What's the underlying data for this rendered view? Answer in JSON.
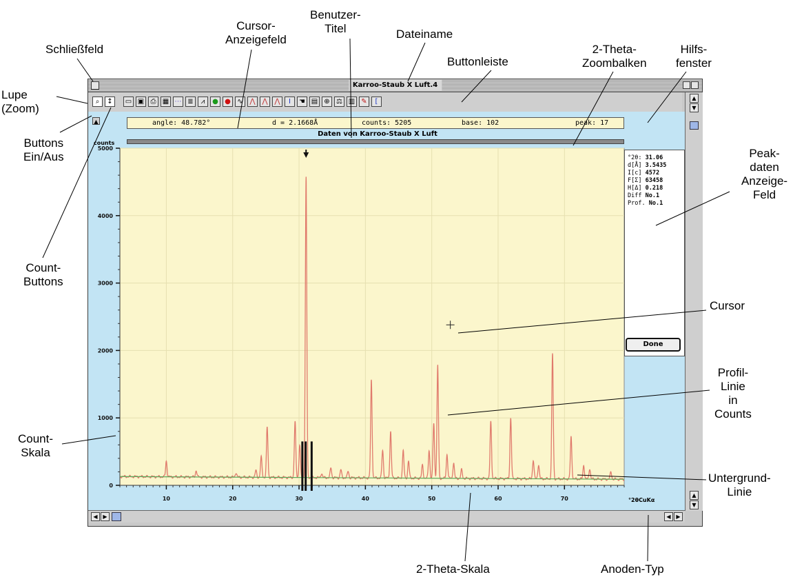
{
  "annotations": {
    "schliessfeld": "Schließfeld",
    "cursor_anzeigefeld": [
      "Cursor-",
      "Anzeigefeld"
    ],
    "benutzer_titel": [
      "Benutzer-",
      "Titel"
    ],
    "dateiname": "Dateiname",
    "buttonleiste": "Buttonleiste",
    "zoombalken": [
      "2-Theta-",
      "Zoombalken"
    ],
    "hilfsfenster": [
      "Hilfs-",
      "fenster"
    ],
    "lupe": [
      "Lupe",
      "(Zoom)"
    ],
    "buttons_ein_aus": [
      "Buttons",
      "Ein/Aus"
    ],
    "count_buttons": [
      "Count-",
      "Buttons"
    ],
    "peakdaten": [
      "Peak-",
      "daten",
      "Anzeige-",
      "Feld"
    ],
    "cursor": "Cursor",
    "profil_linie": [
      "Profil-",
      "Linie",
      "in",
      "Counts"
    ],
    "count_skala": [
      "Count-",
      "Skala"
    ],
    "untergrund_linie": [
      "Untergrund-",
      "Linie"
    ],
    "theta_skala": "2-Theta-Skala",
    "anoden_typ": "Anoden-Typ"
  },
  "window": {
    "title": "Karroo-Staub X Luft.4"
  },
  "toolbar": {
    "icons": [
      "zoom-icon",
      "count-updown-icon",
      "open-icon",
      "save-icon",
      "print-icon",
      "image-icon",
      "dots-icon",
      "peak-table-icon",
      "peak-mark-icon",
      "green-dot-icon",
      "red-dot-icon",
      "spectrum-icon",
      "peak-a-icon",
      "peak-b-icon",
      "peak-c-icon",
      "info-icon",
      "hand-icon",
      "image2-icon",
      "target-icon",
      "scale-icon",
      "chart-icon",
      "pencil-icon",
      "bracket-icon"
    ]
  },
  "cursor_field": {
    "angle": "angle: 48.782°",
    "d": "d = 2.1668Å",
    "counts": "counts: 5205",
    "base": "base: 102",
    "peak": "peak: 17"
  },
  "plot": {
    "user_title": "Daten von Karroo-Staub X Luft",
    "counts_unit": "counts",
    "anode_type": "°2θCuKα"
  },
  "peak_data": {
    "rows": [
      {
        "label": "°2θ:",
        "value": "31.06"
      },
      {
        "label": "d[Å]",
        "value": "3.5435"
      },
      {
        "label": "I[c]",
        "value": "4572"
      },
      {
        "label": "F[Σ]",
        "value": "63458"
      },
      {
        "label": "H[Δ]",
        "value": "0.218"
      },
      {
        "label": "Diff",
        "value": "No.1"
      },
      {
        "label": "Prof.",
        "value": "No.1"
      }
    ],
    "done_label": "Done"
  },
  "chart_data": {
    "type": "line",
    "xlabel": "°2θCuKα",
    "ylabel": "counts",
    "xlim": [
      3,
      79
    ],
    "ylim": [
      0,
      5000
    ],
    "x_ticks": [
      10,
      20,
      30,
      40,
      50,
      60,
      70
    ],
    "y_ticks": [
      0,
      1000,
      2000,
      3000,
      4000,
      5000
    ],
    "grid": true,
    "colors": {
      "profile": "#e07a6c",
      "background": "#5aa85a",
      "plot_bg": "#fbf6cc",
      "peak_marker": "#111111"
    },
    "series": [
      {
        "name": "profile",
        "peaks": [
          {
            "x": 10.0,
            "y": 360
          },
          {
            "x": 14.5,
            "y": 220
          },
          {
            "x": 20.5,
            "y": 190
          },
          {
            "x": 23.5,
            "y": 220
          },
          {
            "x": 24.3,
            "y": 420
          },
          {
            "x": 25.2,
            "y": 860
          },
          {
            "x": 29.4,
            "y": 940
          },
          {
            "x": 30.1,
            "y": 600
          },
          {
            "x": 31.06,
            "y": 4572
          },
          {
            "x": 33.4,
            "y": 180
          },
          {
            "x": 34.8,
            "y": 260
          },
          {
            "x": 36.3,
            "y": 230
          },
          {
            "x": 37.4,
            "y": 210
          },
          {
            "x": 40.9,
            "y": 1560
          },
          {
            "x": 42.6,
            "y": 520
          },
          {
            "x": 43.8,
            "y": 800
          },
          {
            "x": 45.7,
            "y": 510
          },
          {
            "x": 46.5,
            "y": 360
          },
          {
            "x": 48.6,
            "y": 300
          },
          {
            "x": 49.6,
            "y": 520
          },
          {
            "x": 50.3,
            "y": 920
          },
          {
            "x": 50.9,
            "y": 1780
          },
          {
            "x": 52.3,
            "y": 460
          },
          {
            "x": 53.3,
            "y": 330
          },
          {
            "x": 54.5,
            "y": 230
          },
          {
            "x": 58.9,
            "y": 940
          },
          {
            "x": 61.9,
            "y": 1000
          },
          {
            "x": 65.3,
            "y": 380
          },
          {
            "x": 66.1,
            "y": 310
          },
          {
            "x": 68.2,
            "y": 1950
          },
          {
            "x": 71.0,
            "y": 720
          },
          {
            "x": 72.9,
            "y": 300
          },
          {
            "x": 73.8,
            "y": 250
          },
          {
            "x": 77.0,
            "y": 200
          }
        ]
      },
      {
        "name": "background",
        "x": [
          3,
          79
        ],
        "y": [
          130,
          90
        ]
      }
    ],
    "selected_peak_markers": [
      30.5,
      31.0,
      31.9
    ],
    "cursor": {
      "x": 52.8,
      "y": 2380
    }
  }
}
